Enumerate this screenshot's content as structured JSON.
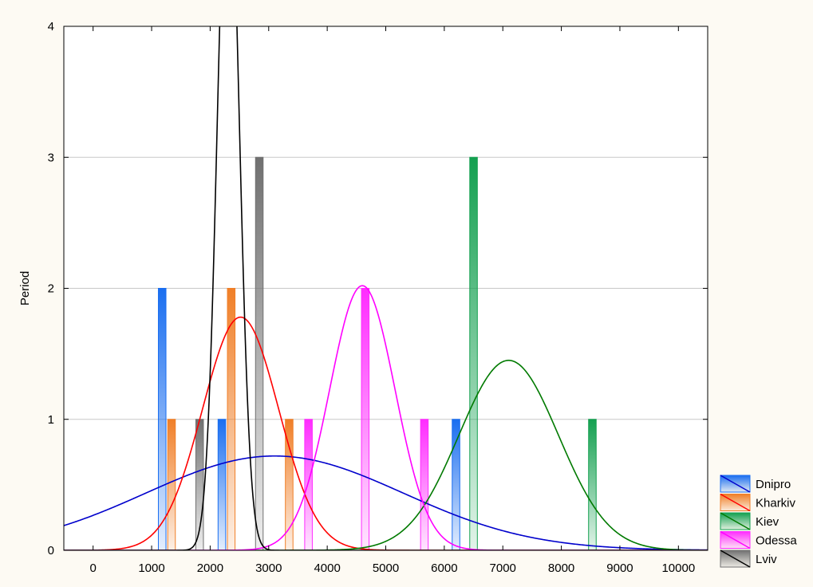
{
  "chart_data": {
    "type": "histogram",
    "ylabel": "Period",
    "xlabel": "",
    "xlim": [
      -500,
      10500
    ],
    "ylim": [
      0,
      4
    ],
    "x_ticks": [
      0,
      1000,
      2000,
      3000,
      4000,
      5000,
      6000,
      7000,
      8000,
      9000,
      10000
    ],
    "y_ticks": [
      0,
      1,
      2,
      3,
      4
    ],
    "grid": "horizontal",
    "legend_position": "bottom-right outside",
    "bar_width": 130,
    "series": [
      {
        "name": "Dnipro",
        "color": "#1a6ef0",
        "curve_color": "#0000cc",
        "bars": [
          [
            1180,
            2
          ],
          [
            2200,
            1
          ],
          [
            6200,
            1
          ]
        ],
        "normal_curve": {
          "mean": 3100,
          "sd": 2200,
          "peak": 0.72
        }
      },
      {
        "name": "Kharkiv",
        "color": "#f07f28",
        "curve_color": "#ff0000",
        "bars": [
          [
            1340,
            1
          ],
          [
            2360,
            2
          ],
          [
            3350,
            1
          ]
        ],
        "normal_curve": {
          "mean": 2520,
          "sd": 650,
          "peak": 1.78
        }
      },
      {
        "name": "Kiev",
        "color": "#14a050",
        "curve_color": "#007a00",
        "bars": [
          [
            6500,
            3
          ],
          [
            8530,
            1
          ]
        ],
        "normal_curve": {
          "mean": 7100,
          "sd": 850,
          "peak": 1.45
        }
      },
      {
        "name": "Odessa",
        "color": "#ff2cff",
        "curve_color": "#ff00ff",
        "bars": [
          [
            3680,
            1
          ],
          [
            4650,
            2
          ],
          [
            5660,
            1
          ]
        ],
        "normal_curve": {
          "mean": 4600,
          "sd": 560,
          "peak": 2.02
        }
      },
      {
        "name": "Lviv",
        "color": "#707070",
        "curve_color": "#000000",
        "bars": [
          [
            1820,
            1
          ],
          [
            2840,
            3
          ]
        ],
        "normal_curve": {
          "mean": 2310,
          "sd": 185,
          "peak": 5.5
        }
      }
    ]
  }
}
